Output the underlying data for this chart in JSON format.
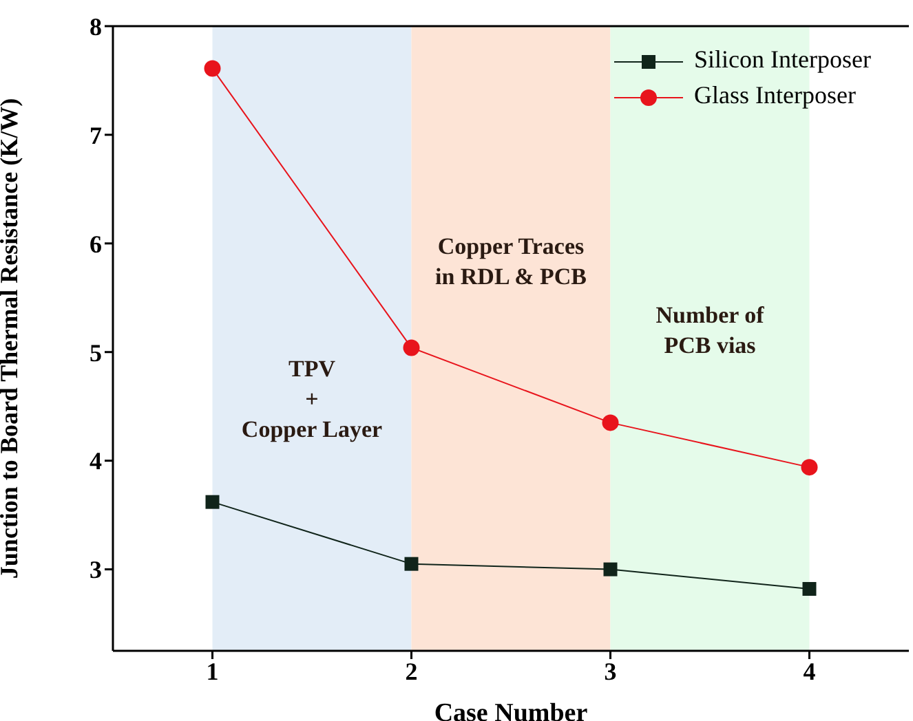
{
  "chart_data": {
    "type": "line",
    "xlabel": "Case Number",
    "ylabel": "Junction to Board Thermal Resistance (K/W)",
    "x": [
      1,
      2,
      3,
      4
    ],
    "series": [
      {
        "name": "Silicon Interposer",
        "color": "#10241a",
        "marker": "square",
        "values": [
          3.62,
          3.05,
          3.0,
          2.82
        ]
      },
      {
        "name": "Glass Interposer",
        "color": "#e8141c",
        "marker": "circle",
        "values": [
          7.61,
          5.04,
          4.35,
          3.94
        ]
      }
    ],
    "xlim": [
      0.5,
      4.5
    ],
    "xticks": [
      1,
      2,
      3,
      4
    ],
    "ylim": [
      2.25,
      8
    ],
    "yticks": [
      3,
      4,
      5,
      6,
      7,
      8
    ],
    "bands": [
      {
        "axis": "x",
        "from": 1,
        "to": 2,
        "color": "#e3edf7",
        "label": "TPV\n+\nCopper Layer"
      },
      {
        "axis": "x",
        "from": 2,
        "to": 3,
        "color": "#fde4d6",
        "label": "Copper Traces\nin RDL & PCB"
      },
      {
        "axis": "x",
        "from": 3,
        "to": 4,
        "color": "#e5fbea",
        "label": "Number of\nPCB vias"
      }
    ],
    "legend": "top right",
    "grid": false,
    "line_style": "solid"
  }
}
